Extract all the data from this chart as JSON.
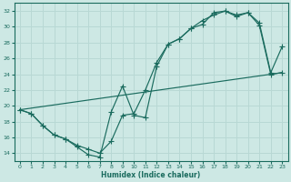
{
  "xlabel": "Humidex (Indice chaleur)",
  "ylabel": "",
  "xlim": [
    -0.5,
    23.5
  ],
  "ylim": [
    13.0,
    33.0
  ],
  "yticks": [
    14,
    16,
    18,
    20,
    22,
    24,
    26,
    28,
    30,
    32
  ],
  "xticks": [
    0,
    1,
    2,
    3,
    4,
    5,
    6,
    7,
    8,
    9,
    10,
    11,
    12,
    13,
    14,
    15,
    16,
    17,
    18,
    19,
    20,
    21,
    22,
    23
  ],
  "bg_color": "#cde8e4",
  "line_color": "#1a6b5e",
  "grid_color": "#b8d8d4",
  "line1_x": [
    0,
    1,
    2,
    3,
    4,
    5,
    6,
    7,
    8,
    9,
    10,
    11,
    12,
    13,
    14,
    15,
    16,
    17,
    18,
    19,
    20,
    21,
    22,
    23
  ],
  "line1_y": [
    19.5,
    19.0,
    17.5,
    16.3,
    15.8,
    15.0,
    14.5,
    14.0,
    15.5,
    18.8,
    19.0,
    22.0,
    25.5,
    27.8,
    28.5,
    29.8,
    30.8,
    31.5,
    32.0,
    31.5,
    31.8,
    30.5,
    24.2,
    27.5
  ],
  "line2_x": [
    0,
    1,
    2,
    3,
    4,
    5,
    6,
    7,
    8,
    9,
    10,
    11,
    12,
    13,
    14,
    15,
    16,
    17,
    18,
    19,
    20,
    21,
    22,
    23
  ],
  "line2_y": [
    19.5,
    19.0,
    17.5,
    16.3,
    15.8,
    14.8,
    13.8,
    13.5,
    19.2,
    22.5,
    18.8,
    18.5,
    25.0,
    27.8,
    28.5,
    29.8,
    30.3,
    31.8,
    32.0,
    31.3,
    31.8,
    30.2,
    24.0,
    24.2
  ],
  "line3_x": [
    0,
    23
  ],
  "line3_y": [
    19.5,
    24.2
  ]
}
